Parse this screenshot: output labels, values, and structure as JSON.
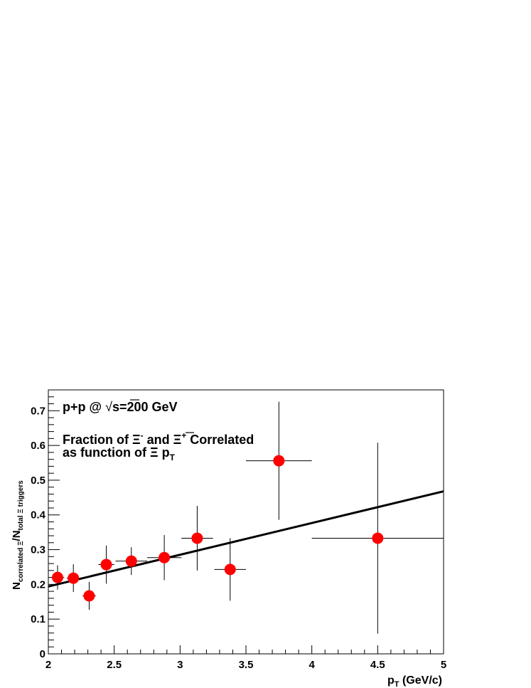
{
  "chart_data": {
    "type": "scatter",
    "title": "",
    "xlabel": {
      "base": "p",
      "sub": "T",
      "tail": " (GeV/c)"
    },
    "ylabel": {
      "n1": "N",
      "sub1": "correlated Ξ",
      "slash": "/N",
      "sub2": "total Ξ triggers"
    },
    "xlim": [
      2,
      5
    ],
    "ylim": [
      0,
      0.76
    ],
    "xticks": [
      2,
      2.5,
      3,
      3.5,
      4,
      4.5,
      5
    ],
    "xtick_labels": [
      "2",
      "2.5",
      "3",
      "3.5",
      "4",
      "4.5",
      "5"
    ],
    "yticks": [
      0,
      0.1,
      0.2,
      0.3,
      0.4,
      0.5,
      0.6,
      0.7
    ],
    "ytick_labels": [
      "0",
      "0.1",
      "0.2",
      "0.3",
      "0.4",
      "0.5",
      "0.6",
      "0.7"
    ],
    "grid": false,
    "marker_color": "#ff0000",
    "points": [
      {
        "x": 2.07,
        "y": 0.22,
        "xerr": 0.05,
        "yerr": 0.035
      },
      {
        "x": 2.19,
        "y": 0.218,
        "xerr": 0.05,
        "yerr": 0.04
      },
      {
        "x": 2.31,
        "y": 0.167,
        "xerr": 0.05,
        "yerr": 0.04
      },
      {
        "x": 2.44,
        "y": 0.257,
        "xerr": 0.06,
        "yerr": 0.055
      },
      {
        "x": 2.63,
        "y": 0.267,
        "xerr": 0.12,
        "yerr": 0.04
      },
      {
        "x": 2.88,
        "y": 0.277,
        "xerr": 0.13,
        "yerr": 0.065
      },
      {
        "x": 3.13,
        "y": 0.333,
        "xerr": 0.12,
        "yerr": 0.093
      },
      {
        "x": 3.38,
        "y": 0.243,
        "xerr": 0.12,
        "yerr": 0.09
      },
      {
        "x": 3.75,
        "y": 0.556,
        "xerr": 0.25,
        "yerr": 0.17
      },
      {
        "x": 4.5,
        "y": 0.333,
        "xerr": 0.5,
        "yerr": 0.275
      }
    ],
    "fit_line": {
      "x": [
        2.0,
        5.0
      ],
      "y": [
        0.194,
        0.468
      ],
      "color": "#000000"
    },
    "annotations": {
      "system": {
        "pre": "p+p @ ",
        "sqrt": "√",
        "post": "s=200 GeV"
      },
      "line1": {
        "a": "Fraction of Ξ",
        "sup1": "-",
        "b": " and ",
        "c": "Ξ",
        "sup2": "+",
        "d": " Correlated"
      },
      "line2": {
        "a": "as function of Ξ p",
        "sub": "T"
      }
    }
  }
}
